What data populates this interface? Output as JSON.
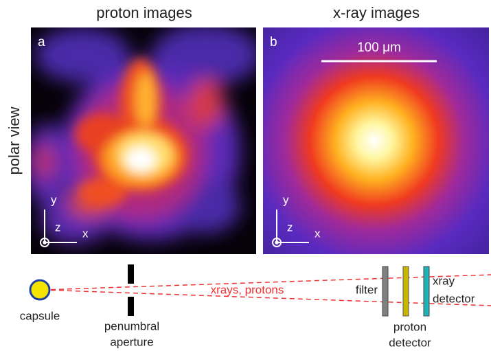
{
  "columns": [
    "proton images",
    "x-ray images"
  ],
  "row_label": "polar view",
  "panels": [
    {
      "label": "a",
      "axes": {
        "y": "y",
        "z": "z",
        "x": "x"
      }
    },
    {
      "label": "b",
      "scale_bar": "100 μm",
      "axes": {
        "y": "y",
        "z": "z",
        "x": "x"
      }
    }
  ],
  "schematic": {
    "capsule": "capsule",
    "aperture": [
      "penumbral",
      "aperture"
    ],
    "beam": "xrays, protons",
    "filter": "filter",
    "proton_detector": [
      "proton",
      "detector"
    ],
    "xray_detector": [
      "xray",
      "detector"
    ]
  }
}
